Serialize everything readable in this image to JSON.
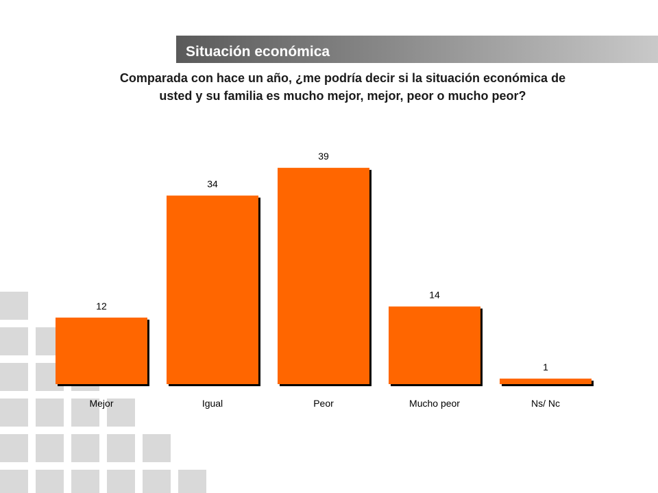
{
  "header": {
    "title": "Situación económica"
  },
  "question": "Comparada con hace un año, ¿me podría decir si la situación económica de usted y su familia es mucho mejor, mejor, peor o mucho peor?",
  "colors": {
    "bar": "#ff6600",
    "bar_shadow": "#000000",
    "deco_square": "#d9d9d9"
  },
  "chart_data": {
    "type": "bar",
    "categories": [
      "Mejor",
      "Igual",
      "Peor",
      "Mucho peor",
      "Ns/ Nc"
    ],
    "values": [
      12,
      34,
      39,
      14,
      1
    ],
    "data_labels": [
      "12",
      "34",
      "39",
      "14",
      "1"
    ],
    "ylim": [
      0,
      39
    ],
    "grid": false,
    "legend": "none"
  }
}
